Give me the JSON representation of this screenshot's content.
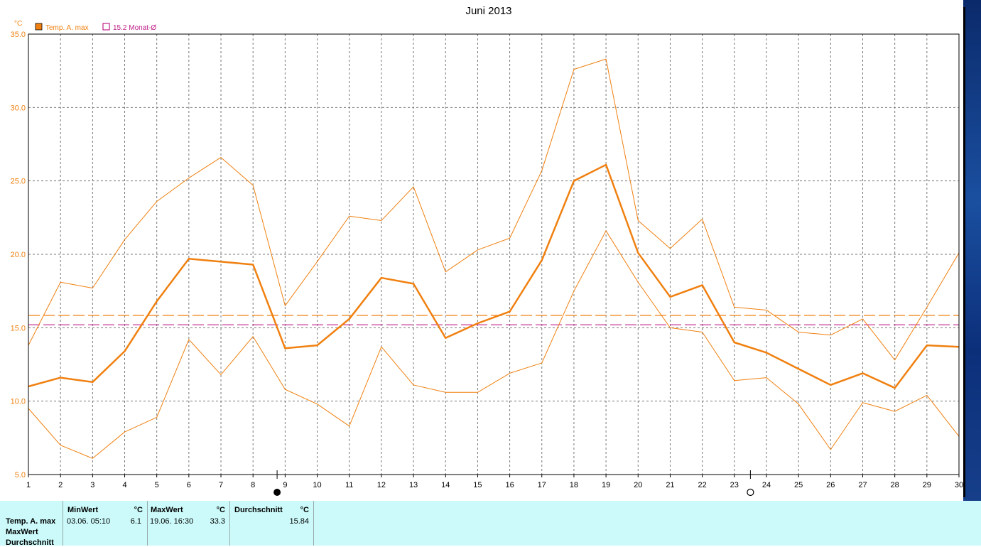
{
  "chart_data": {
    "type": "line",
    "title": "Juni 2013",
    "ylabel": "°C",
    "x": [
      1,
      2,
      3,
      4,
      5,
      6,
      7,
      8,
      9,
      10,
      11,
      12,
      13,
      14,
      15,
      16,
      17,
      18,
      19,
      20,
      21,
      22,
      23,
      24,
      25,
      26,
      27,
      28,
      29,
      30
    ],
    "ylim": [
      5.0,
      35.0
    ],
    "yticks": [
      "35.0",
      "30.0",
      "25.0",
      "20.0",
      "15.0",
      "10.0",
      "5.0"
    ],
    "grid": true,
    "legend": [
      {
        "name": "Temp. A. max",
        "color": "#f08010",
        "marker": "filled-square"
      },
      {
        "name": "15.2 Monat-Ø",
        "color": "#c0208a",
        "marker": "hollow-square"
      }
    ],
    "series": [
      {
        "name": "Temp. A. max",
        "color": "#f08010",
        "width": 2.5,
        "values": [
          11.0,
          11.6,
          11.3,
          13.4,
          16.8,
          19.7,
          19.5,
          19.3,
          13.6,
          13.8,
          15.6,
          18.4,
          18.0,
          14.3,
          15.3,
          16.1,
          19.6,
          25.0,
          26.1,
          20.1,
          17.1,
          17.9,
          14.0,
          13.3,
          12.2,
          11.1,
          11.9,
          10.9,
          13.8,
          13.7
        ]
      },
      {
        "name": "",
        "color": "#f08010",
        "width": 1,
        "values": [
          13.8,
          18.1,
          17.7,
          21.0,
          23.6,
          25.2,
          26.6,
          24.7,
          16.5,
          19.5,
          22.6,
          22.3,
          24.6,
          18.8,
          20.3,
          21.1,
          25.7,
          32.6,
          33.3,
          22.3,
          20.4,
          22.4,
          16.4,
          16.2,
          14.7,
          14.5,
          15.6,
          12.8,
          16.4,
          20.1
        ]
      },
      {
        "name": "",
        "color": "#f08010",
        "width": 1,
        "values": [
          9.5,
          7.0,
          6.1,
          7.9,
          8.9,
          14.2,
          11.8,
          14.4,
          10.8,
          9.8,
          8.3,
          13.7,
          11.1,
          10.6,
          10.6,
          11.9,
          12.6,
          17.5,
          21.6,
          18.1,
          15.0,
          14.7,
          11.4,
          11.6,
          9.8,
          6.7,
          9.9,
          9.3,
          10.4,
          7.6
        ]
      }
    ],
    "reference_lines": [
      {
        "value": 15.84,
        "color": "#f08010",
        "style": "dashed"
      },
      {
        "value": 15.2,
        "color": "#c0208a",
        "style": "dashed"
      }
    ],
    "moon_phases": [
      {
        "day": 8.75,
        "phase": "new-moon"
      },
      {
        "day": 23.5,
        "phase": "full-moon"
      }
    ]
  },
  "stats": {
    "row_labels": [
      "Temp. A. max",
      "MaxWert",
      "Durchschnitt"
    ],
    "min": {
      "header": "MinWert",
      "unit": "°C",
      "date": "03.06.  05:10",
      "value": "6.1"
    },
    "max": {
      "header": "MaxWert",
      "unit": "°C",
      "date": "19.06.  16:30",
      "value": "33.3"
    },
    "avg": {
      "header": "Durchschnitt",
      "unit": "°C",
      "value": "15.84"
    }
  }
}
